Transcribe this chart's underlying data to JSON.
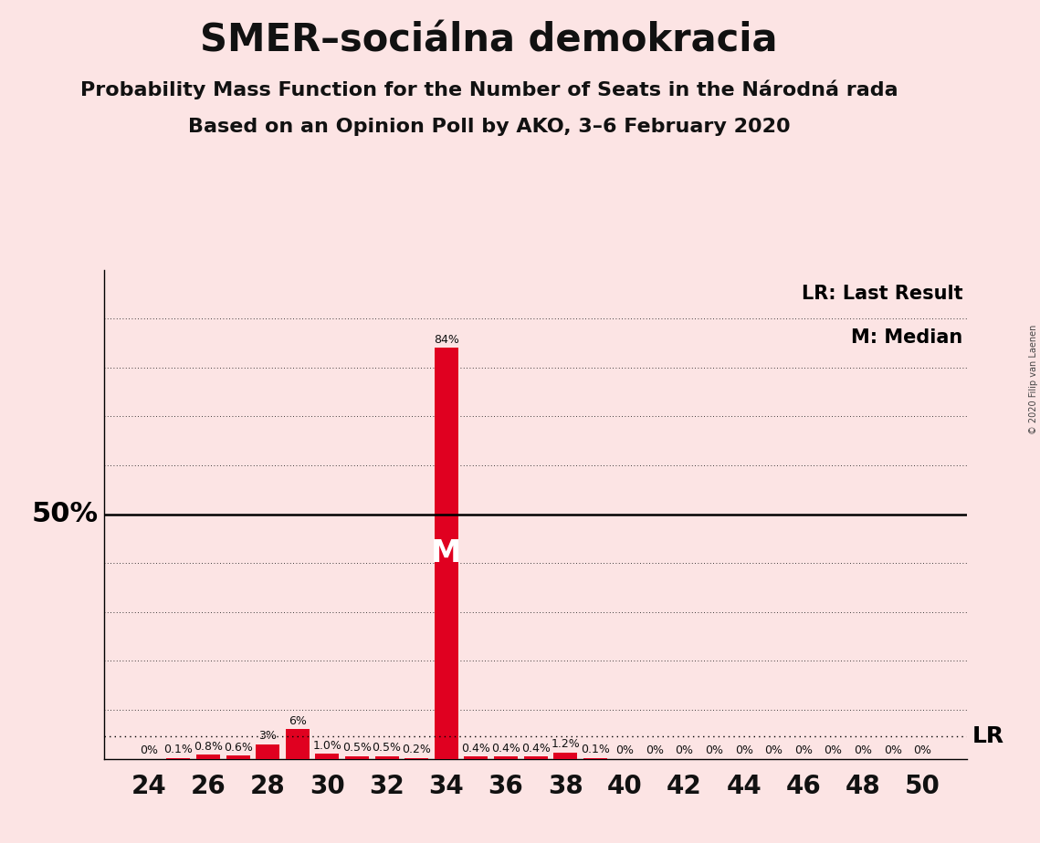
{
  "title": "SMER–sociálna demokracia",
  "subtitle1": "Probability Mass Function for the Number of Seats in the Národná rada",
  "subtitle2": "Based on an Opinion Poll by AKO, 3–6 February 2020",
  "copyright": "© 2020 Filip van Laenen",
  "background_color": "#fce4e4",
  "bar_color": "#e00020",
  "seats": [
    24,
    25,
    26,
    27,
    28,
    29,
    30,
    31,
    32,
    33,
    34,
    35,
    36,
    37,
    38,
    39,
    40,
    41,
    42,
    43,
    44,
    45,
    46,
    47,
    48,
    49,
    50
  ],
  "probabilities": [
    0.0,
    0.1,
    0.8,
    0.6,
    3.0,
    6.0,
    1.0,
    0.5,
    0.5,
    0.2,
    84.0,
    0.4,
    0.4,
    0.4,
    1.2,
    0.1,
    0.0,
    0.0,
    0.0,
    0.0,
    0.0,
    0.0,
    0.0,
    0.0,
    0.0,
    0.0,
    0.0
  ],
  "labels": [
    "0%",
    "0.1%",
    "0.8%",
    "0.6%",
    "3%",
    "6%",
    "1.0%",
    "0.5%",
    "0.5%",
    "0.2%",
    "84%",
    "0.4%",
    "0.4%",
    "0.4%",
    "1.2%",
    "0.1%",
    "0%",
    "0%",
    "0%",
    "0%",
    "0%",
    "0%",
    "0%",
    "0%",
    "0%",
    "0%",
    "0%"
  ],
  "xlim_min": 22.5,
  "xlim_max": 51.5,
  "ylim_min": 0,
  "ylim_max": 100,
  "median_seat": 34,
  "lr_y": 4.5,
  "ytick_positions": [
    10,
    20,
    30,
    40,
    50,
    60,
    70,
    80,
    90
  ],
  "xtick_positions": [
    24,
    26,
    28,
    30,
    32,
    34,
    36,
    38,
    40,
    42,
    44,
    46,
    48,
    50
  ],
  "fifty_pct_line": 50,
  "title_fontsize": 30,
  "subtitle_fontsize": 16,
  "label_fontsize": 9,
  "axis_tick_fontsize": 20,
  "legend_fontsize": 15,
  "fifty_label_fontsize": 22,
  "median_label_fontsize": 24,
  "lr_label_fontsize": 18
}
